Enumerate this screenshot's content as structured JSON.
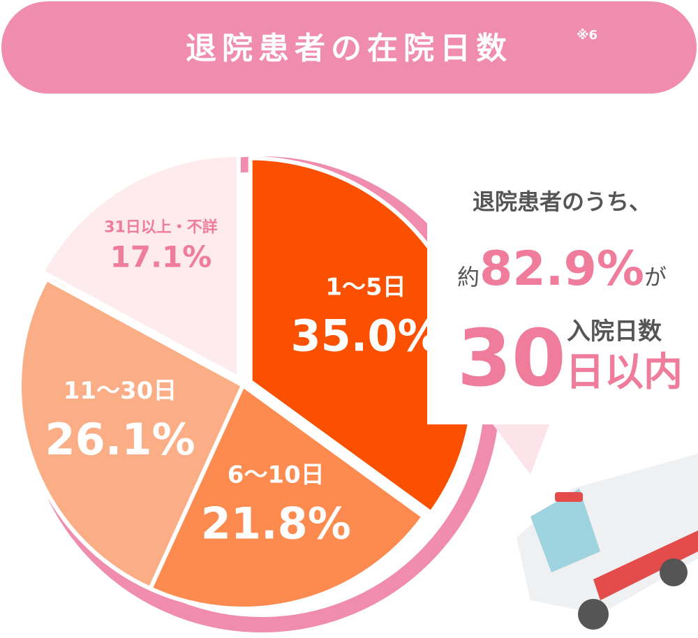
{
  "chart_data": {
    "type": "pie",
    "title": "退院患者の在院日数",
    "note": "※6",
    "categories": [
      "1～5日",
      "6～10日",
      "11～30日",
      "31日以上・不詳"
    ],
    "values": [
      35.0,
      21.8,
      26.1,
      17.1
    ],
    "value_labels": [
      "35.0%",
      "21.8%",
      "26.1%",
      "17.1%"
    ],
    "colors": [
      "#fa5000",
      "#fd8a4f",
      "#fbae86",
      "#fdebee"
    ],
    "annotation": {
      "intro": "退院患者のうち、",
      "prefix": "約",
      "share": "82.9%",
      "suffix": "が",
      "days": "30",
      "label_top": "入院日数",
      "label_bottom": "日以内"
    }
  }
}
